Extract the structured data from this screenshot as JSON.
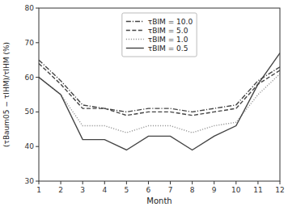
{
  "chart_data": {
    "type": "line",
    "xlabel": "Month",
    "ylabel": "(τBaum05 − τIHM)/τIHM (%)",
    "x": [
      1,
      2,
      3,
      4,
      5,
      6,
      7,
      8,
      9,
      10,
      11,
      12
    ],
    "series": [
      {
        "name": "τBIM = 10.0",
        "color": "#444444",
        "line_style": "dashdot",
        "values": [
          65,
          59,
          52,
          51,
          50,
          51,
          51,
          50,
          51,
          52,
          59,
          63
        ]
      },
      {
        "name": "τBIM = 5.0",
        "color": "#444444",
        "line_style": "dashed",
        "values": [
          64,
          58,
          51,
          51,
          49,
          50,
          50,
          49,
          50,
          51,
          58,
          62
        ]
      },
      {
        "name": "τBIM = 1.0",
        "color": "#999999",
        "line_style": "dotted",
        "values": [
          60,
          55,
          46,
          46,
          44,
          46,
          46,
          44,
          46,
          47,
          55,
          61
        ]
      },
      {
        "name": "τBIM = 0.5",
        "color": "#444444",
        "line_style": "solid",
        "values": [
          60,
          55,
          42,
          42,
          39,
          43,
          43,
          39,
          43,
          46,
          58,
          67
        ]
      }
    ],
    "xlim": [
      1,
      12
    ],
    "ylim": [
      30,
      80
    ],
    "xticks": [
      1,
      2,
      3,
      4,
      5,
      6,
      7,
      8,
      9,
      10,
      11,
      12
    ],
    "yticks": [
      30,
      40,
      50,
      60,
      70,
      80
    ],
    "grid": false,
    "legend": "upper center"
  }
}
